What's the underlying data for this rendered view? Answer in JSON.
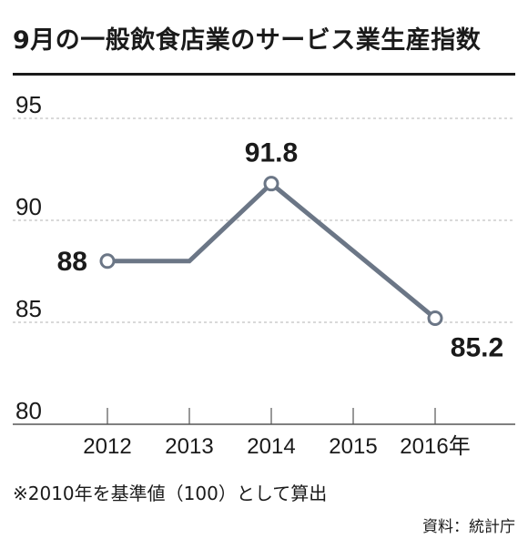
{
  "title": "9月の一般飲食店業のサービス業生産指数",
  "footnote": "※2010年を基準値（100）として算出",
  "source": "資料：統計庁",
  "colors": {
    "line": "#6b7686",
    "grid": "#b3b3b3",
    "axis": "#555555",
    "text": "#1a1a1a"
  },
  "chart_data": {
    "type": "line",
    "title": "9月の一般飲食店業のサービス業生産指数",
    "categories": [
      "2012",
      "2013",
      "2014",
      "2015",
      "2016年"
    ],
    "series": [
      {
        "values": [
          88,
          88,
          91.8,
          88.5,
          85.2
        ]
      }
    ],
    "markers": [
      0,
      2,
      4
    ],
    "data_labels": [
      {
        "index": 0,
        "text": "88"
      },
      {
        "index": 2,
        "text": "91.8"
      },
      {
        "index": 4,
        "text": "85.2"
      }
    ],
    "ylim": [
      80,
      95
    ],
    "yticks": [
      95,
      90,
      85,
      80
    ],
    "grid": true,
    "legend": "none"
  }
}
